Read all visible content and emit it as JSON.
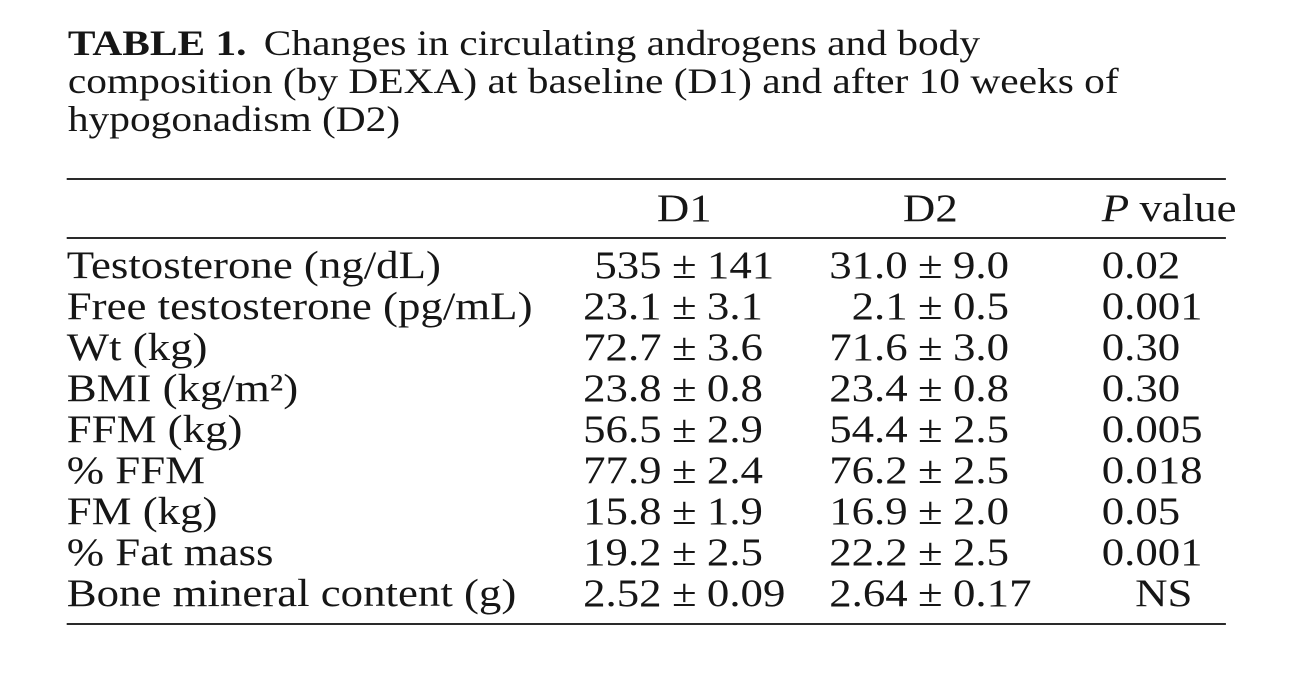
{
  "caption": {
    "label": "TABLE 1.",
    "text": "Changes in circulating androgens and body composition (by DEXA) at baseline (D1) and after 10 weeks of hypogonadism (D2)"
  },
  "pm": "±",
  "header": {
    "d1": "D1",
    "d2": "D2",
    "p_italic": "P",
    "p_rest": "value"
  },
  "rows": [
    {
      "label": "Testosterone (ng/dL)",
      "d1_mean": "535",
      "d1_sd": "141",
      "d2_mean": "31.0",
      "d2_sd": "9.0",
      "p": "0.02"
    },
    {
      "label": "Free testosterone (pg/mL)",
      "d1_mean": "23.1",
      "d1_sd": "3.1",
      "d2_mean": "2.1",
      "d2_sd": "0.5",
      "p": "0.001"
    },
    {
      "label": "Wt (kg)",
      "d1_mean": "72.7",
      "d1_sd": "3.6",
      "d2_mean": "71.6",
      "d2_sd": "3.0",
      "p": "0.30"
    },
    {
      "label": "BMI (kg/m²)",
      "d1_mean": "23.8",
      "d1_sd": "0.8",
      "d2_mean": "23.4",
      "d2_sd": "0.8",
      "p": "0.30"
    },
    {
      "label": "FFM (kg)",
      "d1_mean": "56.5",
      "d1_sd": "2.9",
      "d2_mean": "54.4",
      "d2_sd": "2.5",
      "p": "0.005"
    },
    {
      "label": "% FFM",
      "d1_mean": "77.9",
      "d1_sd": "2.4",
      "d2_mean": "76.2",
      "d2_sd": "2.5",
      "p": "0.018"
    },
    {
      "label": "FM (kg)",
      "d1_mean": "15.8",
      "d1_sd": "1.9",
      "d2_mean": "16.9",
      "d2_sd": "2.0",
      "p": "0.05"
    },
    {
      "label": "% Fat mass",
      "d1_mean": "19.2",
      "d1_sd": "2.5",
      "d2_mean": "22.2",
      "d2_sd": "2.5",
      "p": "0.001"
    },
    {
      "label": "Bone mineral content (g)",
      "d1_mean": "2.52",
      "d1_sd": "0.09",
      "d2_mean": "2.64",
      "d2_sd": "0.17",
      "p": "NS"
    }
  ]
}
